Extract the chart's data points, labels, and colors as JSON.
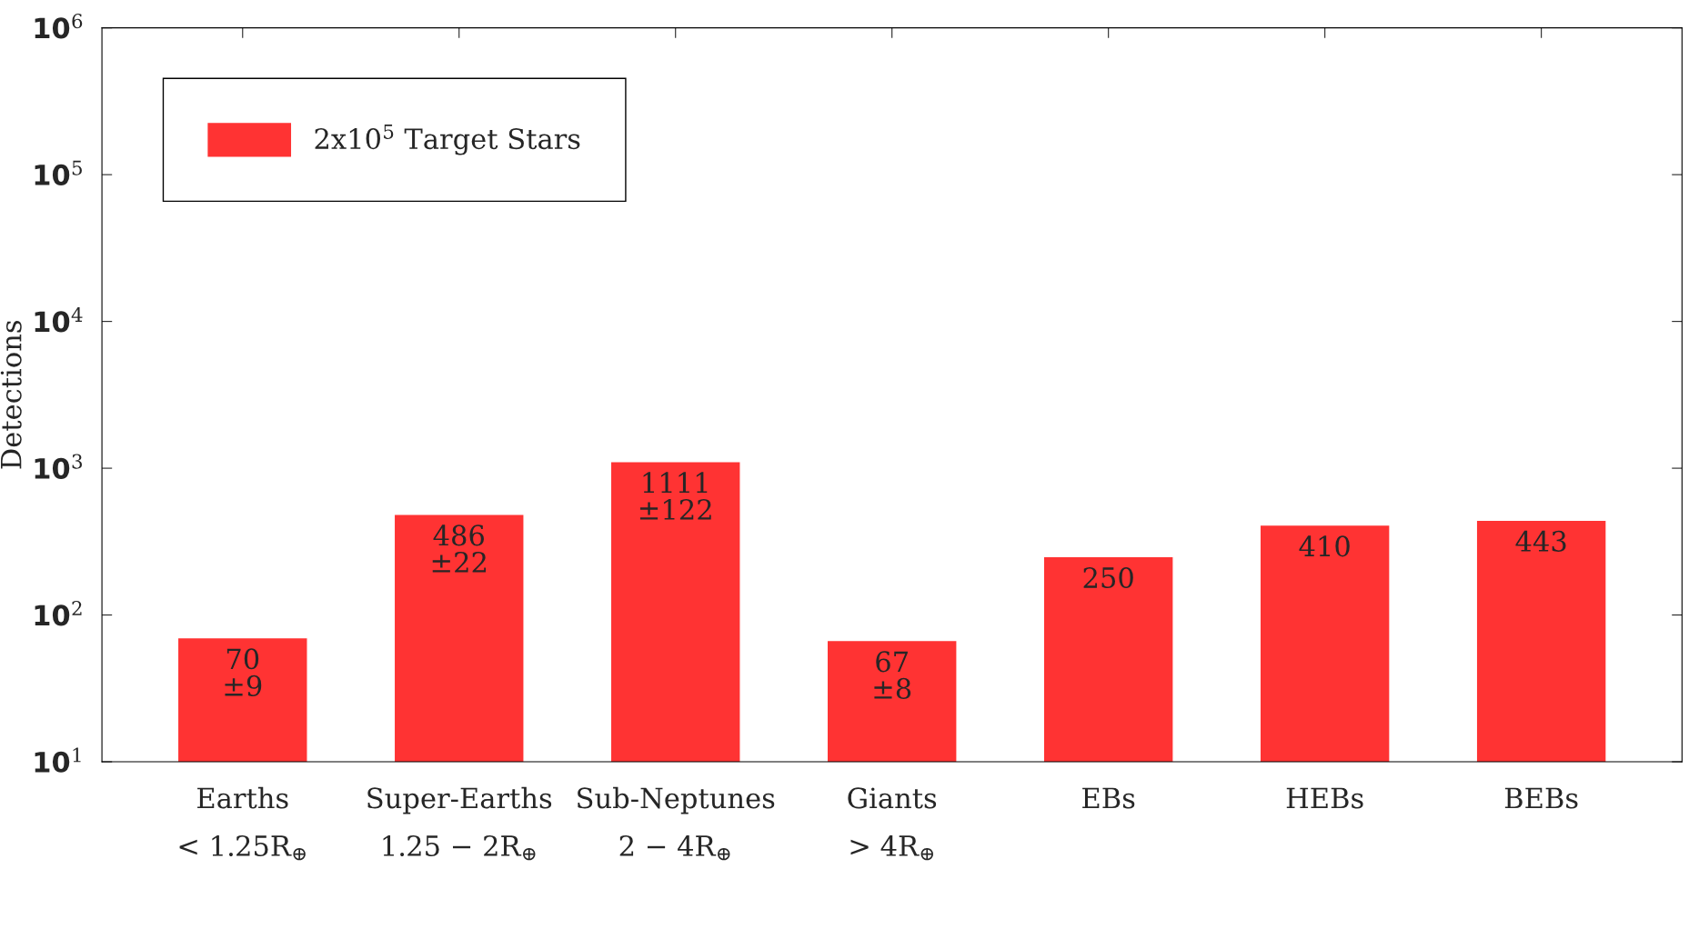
{
  "chart_data": {
    "type": "bar",
    "ylabel": "Detections",
    "categories": [
      "Earths\n< 1.25R$_{⊕}$",
      "Super-Earths\n1.25 − 2R$_{⊕}$",
      "Sub-Neptunes\n2 − 4R$_{⊕}$",
      "Giants\n> 4R$_{⊕}$",
      "EBs",
      "HEBs",
      "BEBs"
    ],
    "series": [
      {
        "name": "2x10$^{5}$ Target Stars",
        "color": "#ff3333",
        "values": [
          70,
          486,
          1111,
          67,
          250,
          410,
          443
        ],
        "value_labels": [
          "70\n±9",
          "486\n±22",
          "1111\n±122",
          "67\n±8",
          "250",
          "410",
          "443"
        ]
      }
    ],
    "log": "y",
    "ylim": [
      10,
      1000000
    ],
    "yticks": [
      {
        "value": 10,
        "label": "10$^{1}$"
      },
      {
        "value": 100,
        "label": "10$^{2}$"
      },
      {
        "value": 1000,
        "label": "10$^{3}$"
      },
      {
        "value": 10000,
        "label": "10$^{4}$"
      },
      {
        "value": 100000,
        "label": "10$^{5}$"
      },
      {
        "value": 1000000,
        "label": "10$^{6}$"
      }
    ],
    "legend": "top left",
    "grid": false
  }
}
